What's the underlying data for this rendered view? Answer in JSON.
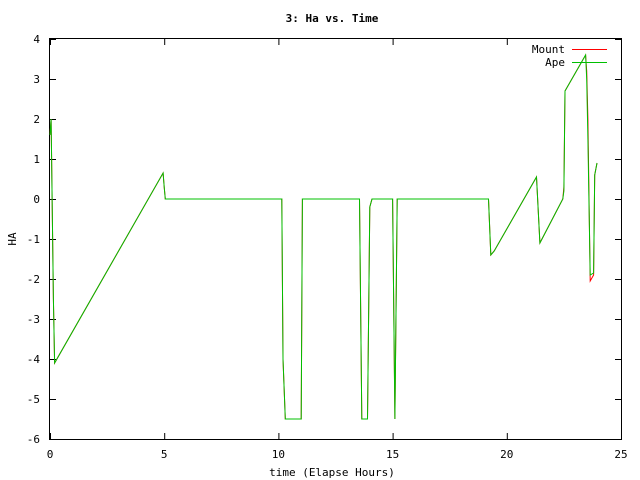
{
  "chart_data": {
    "type": "line",
    "title": "3: Ha vs. Time",
    "xlabel": "time (Elapse Hours)",
    "ylabel": "HA",
    "xlim": [
      0,
      25
    ],
    "ylim": [
      -6,
      4
    ],
    "x_ticks": [
      0,
      5,
      10,
      15,
      20,
      25
    ],
    "y_ticks": [
      -6,
      -5,
      -4,
      -3,
      -2,
      -1,
      0,
      1,
      2,
      3,
      4
    ],
    "grid": false,
    "legend_position": "top-right",
    "series": [
      {
        "name": "Mount",
        "color": "#ff0000",
        "points": [
          [
            0.0,
            1.6
          ],
          [
            0.05,
            2.0
          ],
          [
            0.15,
            -2.5
          ],
          [
            0.2,
            -4.1
          ],
          [
            4.95,
            0.65
          ],
          [
            5.0,
            0.3
          ],
          [
            5.05,
            0.0
          ],
          [
            10.15,
            0.0
          ],
          [
            10.2,
            -4.0
          ],
          [
            10.3,
            -5.5
          ],
          [
            11.0,
            -5.5
          ],
          [
            11.05,
            0.0
          ],
          [
            13.55,
            0.0
          ],
          [
            13.65,
            -5.5
          ],
          [
            13.9,
            -5.5
          ],
          [
            14.0,
            -0.2
          ],
          [
            14.1,
            0.0
          ],
          [
            15.0,
            0.0
          ],
          [
            15.1,
            -5.5
          ],
          [
            15.2,
            0.0
          ],
          [
            19.2,
            0.0
          ],
          [
            19.3,
            -1.4
          ],
          [
            19.45,
            -1.3
          ],
          [
            21.3,
            0.55
          ],
          [
            21.45,
            -1.1
          ],
          [
            22.45,
            0.0
          ],
          [
            22.5,
            0.3
          ],
          [
            22.55,
            2.7
          ],
          [
            23.45,
            3.6
          ],
          [
            23.5,
            3.2
          ],
          [
            23.55,
            2.0
          ],
          [
            23.65,
            -2.05
          ],
          [
            23.8,
            -1.9
          ],
          [
            23.85,
            0.6
          ],
          [
            23.95,
            0.9
          ]
        ]
      },
      {
        "name": "Ape",
        "color": "#00c000",
        "points": [
          [
            0.0,
            1.6
          ],
          [
            0.05,
            2.0
          ],
          [
            0.15,
            -2.5
          ],
          [
            0.2,
            -4.1
          ],
          [
            4.95,
            0.65
          ],
          [
            5.0,
            0.3
          ],
          [
            5.05,
            0.0
          ],
          [
            10.15,
            0.0
          ],
          [
            10.2,
            -4.0
          ],
          [
            10.3,
            -5.5
          ],
          [
            11.0,
            -5.5
          ],
          [
            11.05,
            0.0
          ],
          [
            13.55,
            0.0
          ],
          [
            13.65,
            -5.5
          ],
          [
            13.9,
            -5.5
          ],
          [
            14.0,
            -0.2
          ],
          [
            14.1,
            0.0
          ],
          [
            15.0,
            0.0
          ],
          [
            15.1,
            -5.5
          ],
          [
            15.2,
            0.0
          ],
          [
            19.2,
            0.0
          ],
          [
            19.3,
            -1.4
          ],
          [
            19.45,
            -1.3
          ],
          [
            21.3,
            0.55
          ],
          [
            21.45,
            -1.1
          ],
          [
            22.45,
            0.0
          ],
          [
            22.5,
            0.2
          ],
          [
            22.55,
            2.7
          ],
          [
            23.45,
            3.6
          ],
          [
            23.5,
            3.0
          ],
          [
            23.55,
            1.5
          ],
          [
            23.65,
            -1.9
          ],
          [
            23.8,
            -1.85
          ],
          [
            23.85,
            0.6
          ],
          [
            23.95,
            0.9
          ]
        ]
      }
    ]
  }
}
